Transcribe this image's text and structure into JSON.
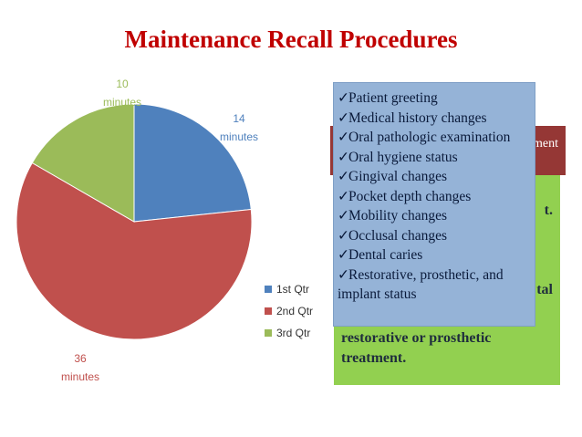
{
  "title": "Maintenance Recall Procedures",
  "chart_data": {
    "type": "pie",
    "title": "Maintenance Recall Procedures",
    "categories": [
      "1st Qtr",
      "2nd Qtr",
      "3rd Qtr"
    ],
    "values": [
      14,
      36,
      10
    ],
    "value_labels": [
      "14 minutes",
      "36 minutes",
      "10 minutes"
    ],
    "label_unit": "minutes",
    "colors": [
      "#4f81bd",
      "#c0504d",
      "#9bbb59"
    ],
    "legend_position": "right"
  },
  "red_box_text": "ment",
  "green_box": {
    "line1": "t.",
    "line2": "tal",
    "line3": "• Schedule or refer for restorative or prosthetic treatment."
  },
  "checklist": {
    "check_icon": "checkmark-icon",
    "items": [
      "Patient greeting",
      "Medical history changes",
      "Oral pathologic examination",
      "Oral hygiene status",
      "Gingival changes",
      "Pocket depth changes",
      "Mobility changes",
      "Occlusal changes",
      "Dental caries",
      "Restorative, prosthetic, and implant status"
    ]
  }
}
